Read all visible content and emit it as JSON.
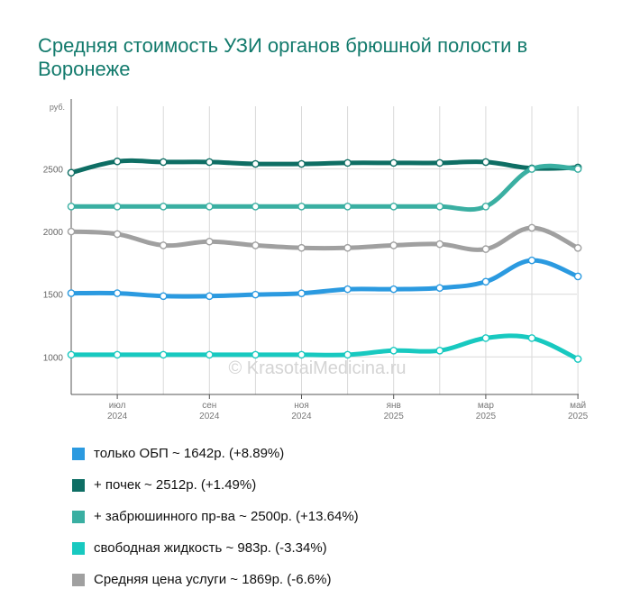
{
  "title": "Средняя стоимость УЗИ органов брюшной полости в Воронеже",
  "watermark": "© KrasotaiMedicina.ru",
  "chart_data": {
    "type": "line",
    "y_unit": "руб.",
    "ylim": [
      700,
      3000
    ],
    "y_ticks": [
      1000,
      1500,
      2000,
      2500
    ],
    "x_count": 12,
    "x_ticks": [
      {
        "i": 1,
        "line1": "июл",
        "line2": "2024"
      },
      {
        "i": 3,
        "line1": "сен",
        "line2": "2024"
      },
      {
        "i": 5,
        "line1": "ноя",
        "line2": "2024"
      },
      {
        "i": 7,
        "line1": "янв",
        "line2": "2025"
      },
      {
        "i": 9,
        "line1": "мар",
        "line2": "2025"
      },
      {
        "i": 11,
        "line1": "май",
        "line2": "2025"
      }
    ],
    "grid": true,
    "legend_position": "bottom",
    "series": [
      {
        "name": "+ почек",
        "color": "#0e6e64",
        "values": [
          2470,
          2560,
          2555,
          2555,
          2540,
          2540,
          2548,
          2548,
          2548,
          2555,
          2505,
          2512
        ]
      },
      {
        "name": "+ забрюшинного пр-ва",
        "color": "#3aafa2",
        "values": [
          2200,
          2200,
          2200,
          2200,
          2200,
          2200,
          2200,
          2200,
          2200,
          2200,
          2500,
          2500
        ]
      },
      {
        "name": "Средняя цена услуги",
        "color": "#a0a0a0",
        "values": [
          2000,
          1980,
          1890,
          1920,
          1890,
          1870,
          1870,
          1890,
          1900,
          1860,
          2030,
          1869
        ]
      },
      {
        "name": "только ОБП",
        "color": "#2b9ae0",
        "values": [
          1508,
          1508,
          1485,
          1485,
          1497,
          1507,
          1540,
          1540,
          1550,
          1600,
          1770,
          1642
        ]
      },
      {
        "name": "свободная жидкость",
        "color": "#18c9c0",
        "values": [
          1017,
          1017,
          1017,
          1017,
          1017,
          1017,
          1017,
          1050,
          1050,
          1150,
          1150,
          983
        ]
      }
    ]
  },
  "legend": [
    {
      "text": "только ОБП ~ 1642р. (+8.89%)",
      "color": "#2b9ae0"
    },
    {
      "text": "+ почек ~ 2512р. (+1.49%)",
      "color": "#0e6e64"
    },
    {
      "text": "+ забрюшинного пр-ва ~ 2500р. (+13.64%)",
      "color": "#3aafa2"
    },
    {
      "text": "свободная жидкость ~ 983р. (-3.34%)",
      "color": "#18c9c0"
    },
    {
      "text": "Средняя цена услуги ~ 1869р. (-6.6%)",
      "color": "#a0a0a0"
    }
  ]
}
